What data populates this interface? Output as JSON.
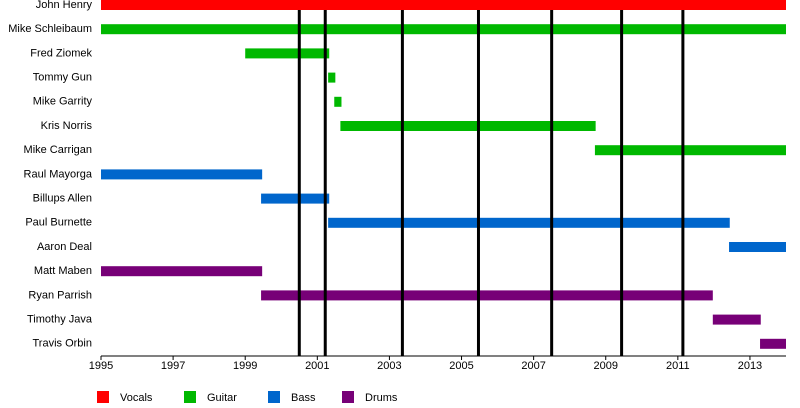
{
  "chart_data": {
    "type": "timeline",
    "categories": [
      "John Henry",
      "Mike Schleibaum",
      "Fred Ziomek",
      "Tommy Gun",
      "Mike Garrity",
      "Kris Norris",
      "Mike Carrigan",
      "Raul Mayorga",
      "Billups Allen",
      "Paul Burnette",
      "Aaron Deal",
      "Matt Maben",
      "Ryan Parrish",
      "Timothy Java",
      "Travis Orbin"
    ],
    "series": [
      {
        "name": "Vocals",
        "color": "#ff0000",
        "values": [
          [
            1995,
            2014
          ],
          null,
          null,
          null,
          null,
          null,
          null,
          null,
          null,
          null,
          null,
          null,
          null,
          null,
          null
        ]
      },
      {
        "name": "Guitar",
        "color": "#00b800",
        "values": [
          null,
          [
            1995,
            2014
          ],
          [
            1999.0,
            2001.33
          ],
          [
            2001.3,
            2001.5
          ],
          [
            2001.47,
            2001.67
          ],
          [
            2001.64,
            2008.72
          ],
          [
            2008.7,
            2014
          ],
          null,
          null,
          null,
          null,
          null,
          null,
          null,
          null
        ]
      },
      {
        "name": "Bass",
        "color": "#0066cc",
        "values": [
          null,
          null,
          null,
          null,
          null,
          null,
          null,
          [
            1995,
            1999.47
          ],
          [
            1999.44,
            2001.33
          ],
          [
            2001.3,
            2012.44
          ],
          [
            2012.42,
            2014
          ],
          null,
          null,
          null,
          null
        ]
      },
      {
        "name": "Drums",
        "color": "#770077",
        "values": [
          null,
          null,
          null,
          null,
          null,
          null,
          null,
          null,
          null,
          null,
          null,
          [
            1995,
            1999.47
          ],
          [
            1999.44,
            2011.97
          ],
          [
            2011.97,
            2013.3
          ],
          [
            2013.28,
            2014
          ]
        ]
      }
    ],
    "events": [
      2000.5,
      2001.22,
      2003.36,
      2005.47,
      2007.5,
      2009.44,
      2011.14
    ],
    "xlim": [
      1995,
      2014
    ],
    "xticks": [
      1995,
      1997,
      1999,
      2001,
      2003,
      2005,
      2007,
      2009,
      2011,
      2013
    ]
  }
}
